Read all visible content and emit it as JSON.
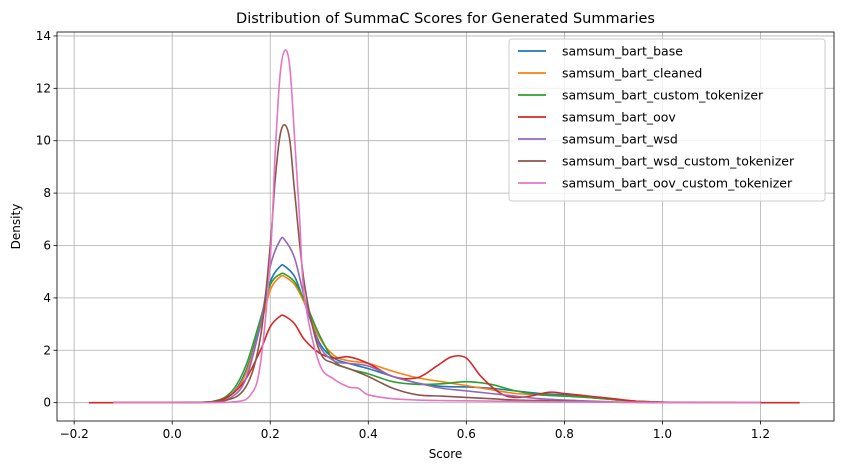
{
  "chart_data": {
    "type": "line",
    "title": "Distribution of SummaC Scores for Generated Summaries",
    "xlabel": "Score",
    "ylabel": "Density",
    "xlim": [
      -0.235,
      1.35
    ],
    "ylim": [
      -0.7,
      14.15
    ],
    "xticks": [
      -0.2,
      0.0,
      0.2,
      0.4,
      0.6,
      0.8,
      1.0,
      1.2
    ],
    "xtick_labels": [
      "−0.2",
      "0.0",
      "0.2",
      "0.4",
      "0.6",
      "0.8",
      "1.0",
      "1.2"
    ],
    "yticks": [
      0,
      2,
      4,
      6,
      8,
      10,
      12,
      14
    ],
    "ytick_labels": [
      "0",
      "2",
      "4",
      "6",
      "8",
      "10",
      "12",
      "14"
    ],
    "grid": true,
    "legend_position": "top-right",
    "series": [
      {
        "name": "samsum_bart_base",
        "color": "#1f77b4",
        "x": [
          -0.12,
          0.0,
          0.08,
          0.12,
          0.15,
          0.18,
          0.2,
          0.22,
          0.23,
          0.25,
          0.27,
          0.3,
          0.33,
          0.36,
          0.4,
          0.45,
          0.5,
          0.55,
          0.6,
          0.65,
          0.7,
          0.75,
          0.8,
          0.85,
          0.9,
          0.95,
          1.0,
          1.05,
          1.15
        ],
        "y": [
          0,
          0,
          0.03,
          0.3,
          1.2,
          3.0,
          4.6,
          5.2,
          5.2,
          4.8,
          3.8,
          2.3,
          1.7,
          1.5,
          1.3,
          1.0,
          0.75,
          0.62,
          0.6,
          0.55,
          0.45,
          0.35,
          0.3,
          0.2,
          0.12,
          0.05,
          0.02,
          0,
          0
        ]
      },
      {
        "name": "samsum_bart_cleaned",
        "color": "#ff7f0e",
        "x": [
          -0.12,
          0.0,
          0.08,
          0.12,
          0.15,
          0.18,
          0.2,
          0.22,
          0.23,
          0.25,
          0.27,
          0.3,
          0.33,
          0.36,
          0.4,
          0.45,
          0.5,
          0.55,
          0.6,
          0.65,
          0.7,
          0.75,
          0.8,
          0.85,
          0.9,
          0.95,
          1.0,
          1.05,
          1.15
        ],
        "y": [
          0,
          0,
          0.03,
          0.3,
          1.1,
          2.9,
          4.3,
          4.8,
          4.8,
          4.5,
          3.8,
          2.5,
          1.8,
          1.6,
          1.5,
          1.2,
          0.95,
          0.8,
          0.65,
          0.5,
          0.35,
          0.3,
          0.25,
          0.2,
          0.12,
          0.05,
          0.02,
          0,
          0
        ]
      },
      {
        "name": "samsum_bart_custom_tokenizer",
        "color": "#2ca02c",
        "x": [
          -0.12,
          0.0,
          0.08,
          0.12,
          0.15,
          0.18,
          0.2,
          0.22,
          0.23,
          0.25,
          0.27,
          0.3,
          0.33,
          0.36,
          0.4,
          0.45,
          0.5,
          0.55,
          0.6,
          0.65,
          0.7,
          0.75,
          0.8,
          0.85,
          0.9,
          0.95,
          1.0,
          1.05,
          1.15
        ],
        "y": [
          0,
          0,
          0.04,
          0.4,
          1.4,
          3.2,
          4.5,
          4.9,
          4.9,
          4.6,
          3.9,
          2.6,
          1.6,
          1.3,
          1.1,
          0.8,
          0.7,
          0.72,
          0.8,
          0.7,
          0.45,
          0.3,
          0.25,
          0.2,
          0.12,
          0.05,
          0.02,
          0,
          0
        ]
      },
      {
        "name": "samsum_bart_oov",
        "color": "#d62728",
        "x": [
          -0.17,
          0.0,
          0.08,
          0.12,
          0.15,
          0.18,
          0.2,
          0.22,
          0.23,
          0.25,
          0.27,
          0.3,
          0.33,
          0.36,
          0.4,
          0.45,
          0.5,
          0.54,
          0.57,
          0.6,
          0.63,
          0.67,
          0.7,
          0.73,
          0.77,
          0.8,
          0.85,
          0.9,
          0.95,
          1.0,
          1.1,
          1.28
        ],
        "y": [
          0,
          0,
          0.03,
          0.3,
          0.9,
          2.0,
          2.9,
          3.3,
          3.3,
          3.0,
          2.4,
          1.9,
          1.7,
          1.75,
          1.5,
          1.0,
          0.95,
          1.4,
          1.75,
          1.7,
          1.0,
          0.35,
          0.2,
          0.25,
          0.4,
          0.35,
          0.25,
          0.15,
          0.05,
          0.02,
          0,
          0
        ]
      },
      {
        "name": "samsum_bart_wsd",
        "color": "#9467bd",
        "x": [
          -0.12,
          0.0,
          0.08,
          0.12,
          0.15,
          0.18,
          0.2,
          0.22,
          0.23,
          0.25,
          0.27,
          0.3,
          0.33,
          0.36,
          0.4,
          0.45,
          0.5,
          0.55,
          0.6,
          0.65,
          0.7,
          0.75,
          0.8,
          0.85,
          0.9,
          0.95,
          1.0,
          1.1,
          1.2
        ],
        "y": [
          0,
          0,
          0.02,
          0.2,
          0.9,
          3.0,
          5.2,
          6.2,
          6.2,
          5.5,
          4.0,
          2.2,
          1.6,
          1.5,
          1.4,
          1.0,
          0.75,
          0.55,
          0.45,
          0.35,
          0.25,
          0.15,
          0.1,
          0.06,
          0.03,
          0.02,
          0.01,
          0,
          0
        ]
      },
      {
        "name": "samsum_bart_wsd_custom_tokenizer",
        "color": "#8c564b",
        "x": [
          -0.12,
          0.0,
          0.1,
          0.15,
          0.18,
          0.2,
          0.21,
          0.22,
          0.23,
          0.24,
          0.25,
          0.27,
          0.3,
          0.33,
          0.36,
          0.4,
          0.45,
          0.5,
          0.55,
          0.6,
          0.65,
          0.7,
          0.75,
          0.8,
          0.85,
          0.9,
          0.95,
          1.0,
          1.1,
          1.2
        ],
        "y": [
          0,
          0,
          0.05,
          0.6,
          2.5,
          6.0,
          8.5,
          10.2,
          10.6,
          10.0,
          8.0,
          4.5,
          2.0,
          1.5,
          1.3,
          1.0,
          0.55,
          0.3,
          0.25,
          0.2,
          0.15,
          0.1,
          0.08,
          0.05,
          0.03,
          0.02,
          0.01,
          0,
          0,
          0
        ]
      },
      {
        "name": "samsum_bart_oov_custom_tokenizer",
        "color": "#e377c2",
        "x": [
          -0.12,
          0.0,
          0.12,
          0.16,
          0.18,
          0.2,
          0.21,
          0.22,
          0.23,
          0.24,
          0.25,
          0.26,
          0.27,
          0.3,
          0.33,
          0.36,
          0.38,
          0.4,
          0.45,
          0.5,
          0.55,
          0.6,
          0.7,
          0.8,
          0.9,
          1.0,
          1.1,
          1.2
        ],
        "y": [
          0,
          0,
          0.02,
          0.3,
          1.5,
          5.5,
          9.5,
          12.5,
          13.45,
          12.8,
          10.0,
          7.0,
          4.0,
          1.5,
          0.9,
          0.6,
          0.55,
          0.3,
          0.15,
          0.1,
          0.08,
          0.07,
          0.05,
          0.03,
          0.02,
          0,
          0,
          0
        ]
      }
    ]
  }
}
